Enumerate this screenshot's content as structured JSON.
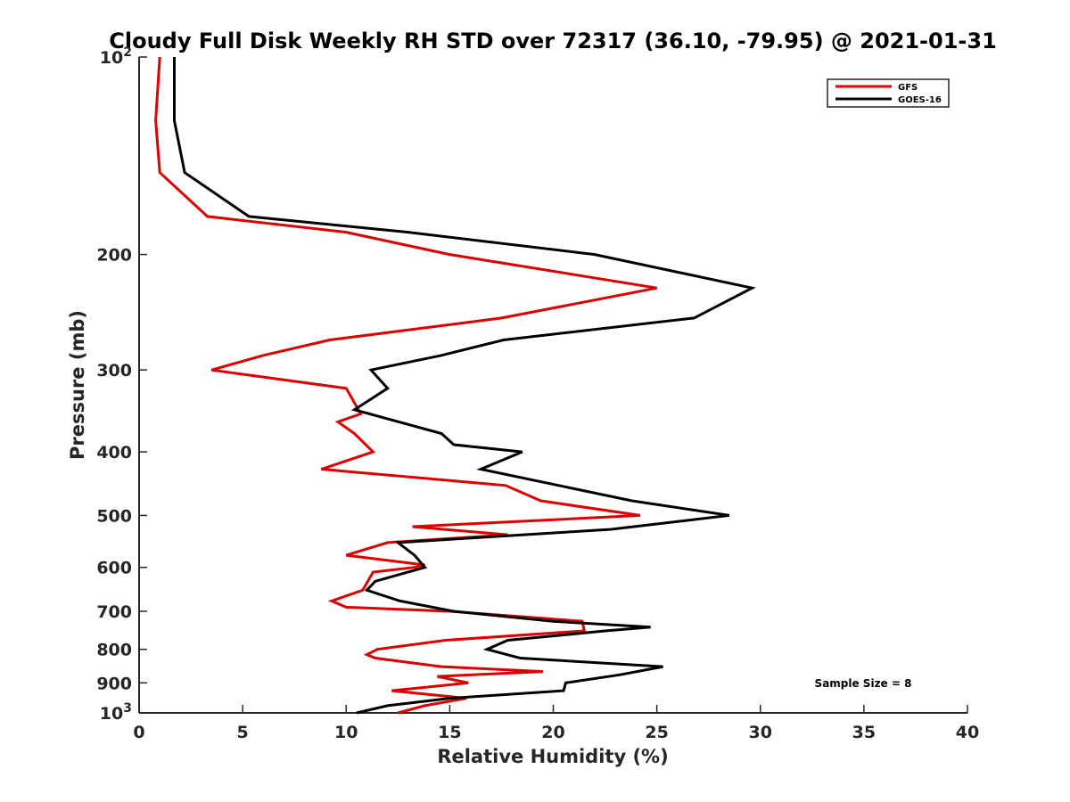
{
  "chart_data": {
    "type": "line",
    "title": "Cloudy Full Disk Weekly RH STD over 72317 (36.10, -79.95) @ 2021-01-31",
    "xlabel": "Relative Humidity (%)",
    "ylabel": "Pressure (mb)",
    "xlim": [
      0,
      40
    ],
    "ylim": [
      100,
      1000
    ],
    "y_scale": "log",
    "y_reversed": true,
    "x_ticks": [
      "0",
      "5",
      "10",
      "15",
      "20",
      "25",
      "30",
      "35",
      "40"
    ],
    "y_ticks": [
      {
        "value": 100,
        "base": "10",
        "exp": "2"
      },
      {
        "value": 200,
        "label": "200"
      },
      {
        "value": 300,
        "label": "300"
      },
      {
        "value": 400,
        "label": "400"
      },
      {
        "value": 500,
        "label": "500"
      },
      {
        "value": 600,
        "label": "600"
      },
      {
        "value": 700,
        "label": "700"
      },
      {
        "value": 800,
        "label": "800"
      },
      {
        "value": 900,
        "label": "900"
      },
      {
        "value": 1000,
        "base": "10",
        "exp": "3"
      }
    ],
    "grid": false,
    "legend_position": "top-right",
    "annotation": "Sample Size = 8",
    "series": [
      {
        "name": "GFS",
        "color": "#dd0000",
        "points": [
          [
            1.0,
            100
          ],
          [
            0.8,
            125
          ],
          [
            1.0,
            150
          ],
          [
            3.3,
            175
          ],
          [
            10.0,
            185
          ],
          [
            15.0,
            200
          ],
          [
            25.0,
            225
          ],
          [
            17.5,
            250
          ],
          [
            9.2,
            270
          ],
          [
            6.0,
            285
          ],
          [
            3.5,
            300
          ],
          [
            10.0,
            320
          ],
          [
            10.7,
            350
          ],
          [
            9.6,
            360
          ],
          [
            10.4,
            375
          ],
          [
            11.3,
            400
          ],
          [
            8.8,
            425
          ],
          [
            17.7,
            450
          ],
          [
            19.4,
            475
          ],
          [
            24.2,
            500
          ],
          [
            13.2,
            520
          ],
          [
            17.8,
            535
          ],
          [
            12.0,
            550
          ],
          [
            10.0,
            575
          ],
          [
            13.8,
            595
          ],
          [
            13.3,
            600
          ],
          [
            11.3,
            610
          ],
          [
            10.8,
            650
          ],
          [
            9.3,
            675
          ],
          [
            10.0,
            690
          ],
          [
            15.0,
            700
          ],
          [
            21.4,
            725
          ],
          [
            21.5,
            750
          ],
          [
            14.8,
            775
          ],
          [
            11.5,
            800
          ],
          [
            11.0,
            815
          ],
          [
            11.4,
            825
          ],
          [
            14.6,
            850
          ],
          [
            19.5,
            865
          ],
          [
            14.4,
            880
          ],
          [
            15.9,
            900
          ],
          [
            12.2,
            925
          ],
          [
            15.8,
            950
          ],
          [
            13.8,
            975
          ],
          [
            12.5,
            1000
          ]
        ]
      },
      {
        "name": "GOES-16",
        "color": "#000000",
        "points": [
          [
            1.7,
            100
          ],
          [
            1.7,
            125
          ],
          [
            2.2,
            150
          ],
          [
            5.3,
            175
          ],
          [
            13.0,
            185
          ],
          [
            22.0,
            200
          ],
          [
            29.6,
            225
          ],
          [
            26.8,
            250
          ],
          [
            17.6,
            270
          ],
          [
            14.6,
            285
          ],
          [
            11.2,
            300
          ],
          [
            12.0,
            320
          ],
          [
            10.4,
            345
          ],
          [
            14.6,
            375
          ],
          [
            15.2,
            390
          ],
          [
            18.5,
            400
          ],
          [
            16.5,
            425
          ],
          [
            23.8,
            475
          ],
          [
            28.5,
            500
          ],
          [
            22.8,
            525
          ],
          [
            12.5,
            550
          ],
          [
            13.3,
            575
          ],
          [
            13.8,
            600
          ],
          [
            11.4,
            630
          ],
          [
            11.0,
            650
          ],
          [
            12.6,
            675
          ],
          [
            15.2,
            700
          ],
          [
            20.0,
            725
          ],
          [
            24.7,
            740
          ],
          [
            22.5,
            750
          ],
          [
            17.8,
            775
          ],
          [
            16.8,
            800
          ],
          [
            18.4,
            825
          ],
          [
            25.3,
            850
          ],
          [
            23.2,
            875
          ],
          [
            20.6,
            900
          ],
          [
            20.5,
            925
          ],
          [
            15.0,
            950
          ],
          [
            12.0,
            975
          ],
          [
            10.5,
            1000
          ]
        ]
      }
    ]
  }
}
